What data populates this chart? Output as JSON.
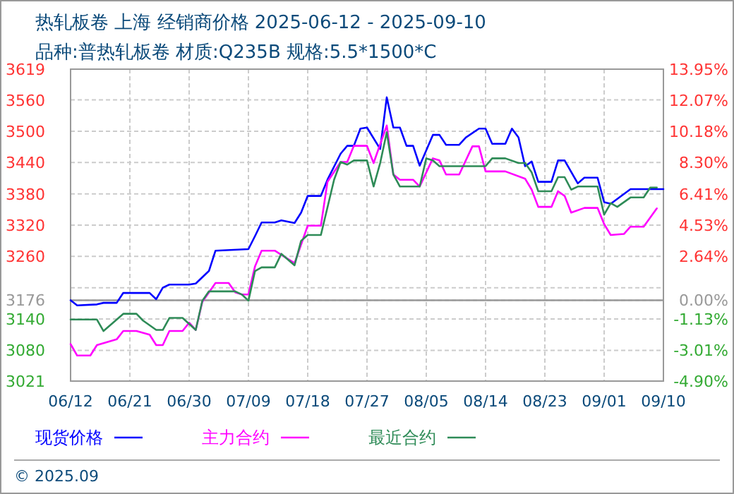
{
  "chart_data": {
    "type": "line",
    "title": "热轧板卷 上海 经销商价格 2025-06-12 - 2025-09-10",
    "subtitle": "品种:普热轧板卷 材质:Q235B 规格:5.5*1500*C",
    "xlim": [
      "2025-06-12",
      "2025-09-10"
    ],
    "xticks": [
      {
        "value": "2025-06-12",
        "label": "06/12"
      },
      {
        "value": "2025-06-21",
        "label": "06/21"
      },
      {
        "value": "2025-06-30",
        "label": "06/30"
      },
      {
        "value": "2025-07-09",
        "label": "07/09"
      },
      {
        "value": "2025-07-18",
        "label": "07/18"
      },
      {
        "value": "2025-07-27",
        "label": "07/27"
      },
      {
        "value": "2025-08-05",
        "label": "08/05"
      },
      {
        "value": "2025-08-14",
        "label": "08/14"
      },
      {
        "value": "2025-08-23",
        "label": "08/23"
      },
      {
        "value": "2025-09-01",
        "label": "09/01"
      },
      {
        "value": "2025-09-10",
        "label": "09/10"
      }
    ],
    "ylim": [
      3021,
      3619
    ],
    "yticks": [
      3021,
      3080,
      3140,
      3176,
      {
        "value": 3200,
        "label": null
      },
      3260,
      3320,
      3380,
      3440,
      3500,
      3560,
      3619
    ],
    "y2lim": [
      -4.9,
      13.95
    ],
    "y2ticks": [
      {
        "value": -4.9,
        "label": "-4.90%"
      },
      {
        "value": -3.01,
        "label": "-3.01%"
      },
      {
        "value": -1.13,
        "label": "-1.13%"
      },
      {
        "value": 0,
        "label": "0.00%"
      },
      {
        "value": 2.64,
        "label": "2.64%"
      },
      {
        "value": 4.53,
        "label": "4.53%"
      },
      {
        "value": 6.41,
        "label": "6.41%"
      },
      {
        "value": 8.3,
        "label": "8.30%"
      },
      {
        "value": 10.18,
        "label": "10.18%"
      },
      {
        "value": 12.07,
        "label": "12.07%"
      },
      {
        "value": 13.95,
        "label": "13.95%"
      }
    ],
    "ref_lines": [
      {
        "axis": "y",
        "value": 3176,
        "color": "#999999"
      }
    ],
    "grid": true,
    "legend": "bottom",
    "annotations": [
      "© 2025.09"
    ],
    "series": [
      {
        "name": "现货价格",
        "color": "#0000ff",
        "x": [
          "2025-06-12",
          "2025-06-13",
          "2025-06-16",
          "2025-06-17",
          "2025-06-19",
          "2025-06-20",
          "2025-06-24",
          "2025-06-25",
          "2025-06-26",
          "2025-06-27",
          "2025-06-30",
          "2025-07-01",
          "2025-07-03",
          "2025-07-04",
          "2025-07-09",
          "2025-07-10",
          "2025-07-11",
          "2025-07-13",
          "2025-07-14",
          "2025-07-16",
          "2025-07-17",
          "2025-07-18",
          "2025-07-20",
          "2025-07-21",
          "2025-07-23",
          "2025-07-24",
          "2025-07-25",
          "2025-07-26",
          "2025-07-27",
          "2025-07-29",
          "2025-07-30",
          "2025-07-31",
          "2025-08-01",
          "2025-08-02",
          "2025-08-03",
          "2025-08-04",
          "2025-08-06",
          "2025-08-07",
          "2025-08-08",
          "2025-08-10",
          "2025-08-11",
          "2025-08-13",
          "2025-08-14",
          "2025-08-15",
          "2025-08-17",
          "2025-08-18",
          "2025-08-19",
          "2025-08-20",
          "2025-08-21",
          "2025-08-22",
          "2025-08-24",
          "2025-08-25",
          "2025-08-26",
          "2025-08-28",
          "2025-08-29",
          "2025-08-31",
          "2025-09-01",
          "2025-09-02",
          "2025-09-05",
          "2025-09-10"
        ],
        "values": [
          3176,
          3166,
          3168,
          3171,
          3171,
          3190,
          3190,
          3178,
          3200,
          3206,
          3206,
          3208,
          3232,
          3271,
          3274,
          3299,
          3325,
          3325,
          3329,
          3324,
          3344,
          3376,
          3376,
          3407,
          3457,
          3472,
          3472,
          3505,
          3507,
          3466,
          3565,
          3507,
          3507,
          3472,
          3472,
          3434,
          3493,
          3493,
          3474,
          3474,
          3488,
          3505,
          3505,
          3476,
          3476,
          3505,
          3488,
          3433,
          3442,
          3403,
          3403,
          3444,
          3444,
          3400,
          3411,
          3411,
          3364,
          3361,
          3389,
          3389
        ]
      },
      {
        "name": "主力合约",
        "color": "#ff00ff",
        "x": [
          "2025-06-12",
          "2025-06-13",
          "2025-06-15",
          "2025-06-16",
          "2025-06-19",
          "2025-06-20",
          "2025-06-22",
          "2025-06-24",
          "2025-06-25",
          "2025-06-26",
          "2025-06-27",
          "2025-06-29",
          "2025-06-30",
          "2025-07-01",
          "2025-07-02",
          "2025-07-04",
          "2025-07-06",
          "2025-07-07",
          "2025-07-08",
          "2025-07-09",
          "2025-07-10",
          "2025-07-11",
          "2025-07-13",
          "2025-07-14",
          "2025-07-16",
          "2025-07-18",
          "2025-07-20",
          "2025-07-21",
          "2025-07-23",
          "2025-07-24",
          "2025-07-25",
          "2025-07-27",
          "2025-07-28",
          "2025-07-30",
          "2025-07-31",
          "2025-08-01",
          "2025-08-03",
          "2025-08-04",
          "2025-08-06",
          "2025-08-07",
          "2025-08-08",
          "2025-08-10",
          "2025-08-12",
          "2025-08-13",
          "2025-08-14",
          "2025-08-17",
          "2025-08-20",
          "2025-08-21",
          "2025-08-22",
          "2025-08-24",
          "2025-08-25",
          "2025-08-26",
          "2025-08-27",
          "2025-08-29",
          "2025-08-31",
          "2025-09-01",
          "2025-09-02",
          "2025-09-04",
          "2025-09-05",
          "2025-09-07",
          "2025-09-09"
        ],
        "values": [
          3092,
          3070,
          3070,
          3090,
          3101,
          3117,
          3117,
          3110,
          3090,
          3090,
          3117,
          3117,
          3133,
          3119,
          3173,
          3209,
          3209,
          3191,
          3187,
          3187,
          3241,
          3271,
          3271,
          3263,
          3247,
          3319,
          3319,
          3403,
          3441,
          3441,
          3472,
          3472,
          3439,
          3511,
          3417,
          3407,
          3407,
          3394,
          3448,
          3444,
          3417,
          3417,
          3471,
          3471,
          3423,
          3423,
          3409,
          3388,
          3355,
          3355,
          3385,
          3376,
          3344,
          3353,
          3353,
          3322,
          3301,
          3303,
          3317,
          3317,
          3352
        ]
      },
      {
        "name": "最近合约",
        "color": "#2e8b57",
        "x": [
          "2025-06-12",
          "2025-06-16",
          "2025-06-17",
          "2025-06-20",
          "2025-06-22",
          "2025-06-23",
          "2025-06-25",
          "2025-06-26",
          "2025-06-27",
          "2025-06-29",
          "2025-07-01",
          "2025-07-02",
          "2025-07-03",
          "2025-07-07",
          "2025-07-08",
          "2025-07-09",
          "2025-07-10",
          "2025-07-11",
          "2025-07-13",
          "2025-07-14",
          "2025-07-16",
          "2025-07-17",
          "2025-07-18",
          "2025-07-20",
          "2025-07-22",
          "2025-07-23",
          "2025-07-24",
          "2025-07-25",
          "2025-07-27",
          "2025-07-28",
          "2025-07-29",
          "2025-07-30",
          "2025-07-31",
          "2025-08-01",
          "2025-08-04",
          "2025-08-05",
          "2025-08-06",
          "2025-08-07",
          "2025-08-14",
          "2025-08-15",
          "2025-08-17",
          "2025-08-19",
          "2025-08-20",
          "2025-08-21",
          "2025-08-22",
          "2025-08-24",
          "2025-08-25",
          "2025-08-26",
          "2025-08-27",
          "2025-08-28",
          "2025-08-31",
          "2025-09-01",
          "2025-09-02",
          "2025-09-03",
          "2025-09-05",
          "2025-09-07",
          "2025-09-08",
          "2025-09-09"
        ],
        "values": [
          3139,
          3139,
          3117,
          3150,
          3150,
          3137,
          3119,
          3119,
          3142,
          3142,
          3119,
          3175,
          3193,
          3193,
          3187,
          3175,
          3232,
          3239,
          3239,
          3265,
          3243,
          3290,
          3301,
          3301,
          3407,
          3441,
          3436,
          3444,
          3444,
          3394,
          3439,
          3498,
          3417,
          3394,
          3394,
          3448,
          3444,
          3433,
          3433,
          3448,
          3448,
          3439,
          3439,
          3421,
          3385,
          3385,
          3412,
          3412,
          3388,
          3394,
          3394,
          3340,
          3362,
          3355,
          3373,
          3373,
          3392,
          3392
        ]
      }
    ]
  }
}
